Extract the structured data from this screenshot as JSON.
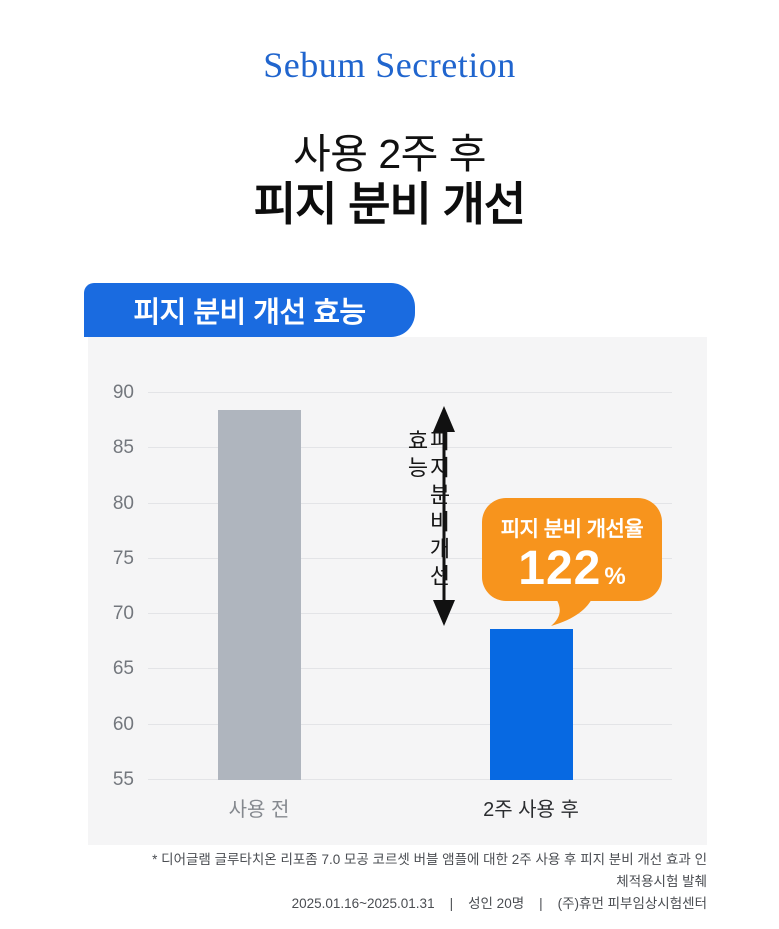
{
  "page": {
    "eyebrow": "Sebum Secretion",
    "title_line1": "사용 2주 후",
    "title_line2": "피지 분비 개선"
  },
  "panel": {
    "badge_label": "피지 분비 개선 효능"
  },
  "chart_data": {
    "type": "bar",
    "title": "피지 분비 개선 효능",
    "categories": [
      "사용 전",
      "2주 사용 후"
    ],
    "values": [
      88.5,
      68.7
    ],
    "bar_colors": [
      "#afb5be",
      "#0769e2"
    ],
    "ylim": [
      55,
      90
    ],
    "yticks": [
      90,
      85,
      80,
      75,
      70,
      65,
      60,
      55
    ],
    "grid": true,
    "legend": "none",
    "annotations": {
      "arrow_label": "피지분비개선효능",
      "callout_label": "피지 분비 개선율",
      "callout_value": "122",
      "callout_unit": "%"
    }
  },
  "footnote": {
    "line1": "* 디어글램 글루타치온 리포좀 7.0 모공 코르셋 버블 앰플에 대한 2주 사용 후 피지 분비 개선 효과 인체적용시험 발췌",
    "line2": "2025.01.16~2025.01.31    |    성인 20명    |    (주)휴먼 피부임상시험센터"
  },
  "colors": {
    "title_blue": "#2065ce",
    "badge_blue": "#1a6be0",
    "bar_blue": "#0769e2",
    "bar_gray": "#afb5be",
    "callout_orange": "#f7941d"
  }
}
